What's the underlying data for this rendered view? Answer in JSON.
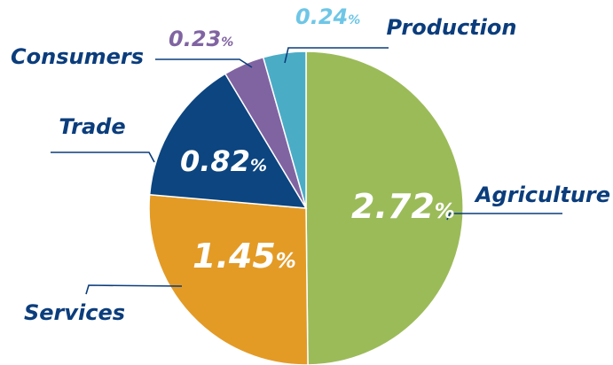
{
  "chart_data": {
    "type": "pie",
    "categories": [
      "Agriculture",
      "Services",
      "Trade",
      "Consumers",
      "Production"
    ],
    "values": [
      2.72,
      1.45,
      0.82,
      0.23,
      0.24
    ],
    "value_labels": [
      "2.72",
      "1.45",
      "0.82",
      "0.23",
      "0.24"
    ],
    "unit": "%",
    "colors": [
      "#9bbb59",
      "#e39b26",
      "#0c4580",
      "#8064a2",
      "#4bacc6"
    ],
    "label_color": "#0b3d7c",
    "value_label_colors": [
      "#ffffff",
      "#ffffff",
      "#ffffff",
      "#8064a2",
      "#6ec6e6"
    ],
    "start": "12 o'clock",
    "direction": "clockwise",
    "legend": "none"
  }
}
